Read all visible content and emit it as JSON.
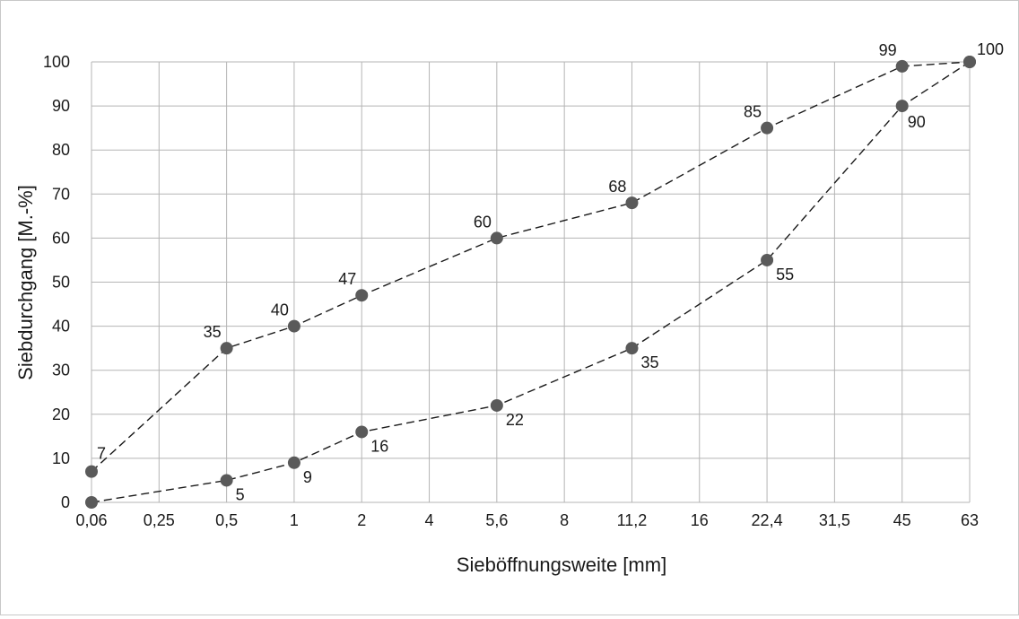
{
  "chart_data": {
    "type": "line",
    "xlabel": "Sieböffnungsweite [mm]",
    "ylabel": "Siebdurchgang [M.-%]",
    "x_ticks": [
      "0,06",
      "0,25",
      "0,5",
      "1",
      "2",
      "4",
      "5,6",
      "8",
      "11,2",
      "16",
      "22,4",
      "31,5",
      "45",
      "63"
    ],
    "y_ticks": [
      "0",
      "10",
      "20",
      "30",
      "40",
      "50",
      "60",
      "70",
      "80",
      "90",
      "100"
    ],
    "ylim": [
      0,
      100
    ],
    "grid": true,
    "legend": "none",
    "series": [
      {
        "x": [
          0.06,
          0.5,
          1,
          2,
          5.6,
          11.2,
          22.4,
          45,
          63
        ],
        "values": [
          7,
          35,
          40,
          47,
          60,
          68,
          85,
          99,
          100
        ],
        "labels": [
          "7",
          "35",
          "40",
          "47",
          "60",
          "68",
          "85",
          "99",
          "100"
        ]
      },
      {
        "x": [
          0.06,
          0.5,
          1,
          2,
          5.6,
          11.2,
          22.4,
          45,
          63
        ],
        "values": [
          0,
          5,
          9,
          16,
          22,
          35,
          55,
          90,
          100
        ],
        "labels": [
          "",
          "5",
          "9",
          "16",
          "22",
          "35",
          "55",
          "90",
          ""
        ]
      }
    ],
    "line_color": "#1a1a1a",
    "marker_color": "#5a5a5a",
    "line_style": "dashed"
  }
}
